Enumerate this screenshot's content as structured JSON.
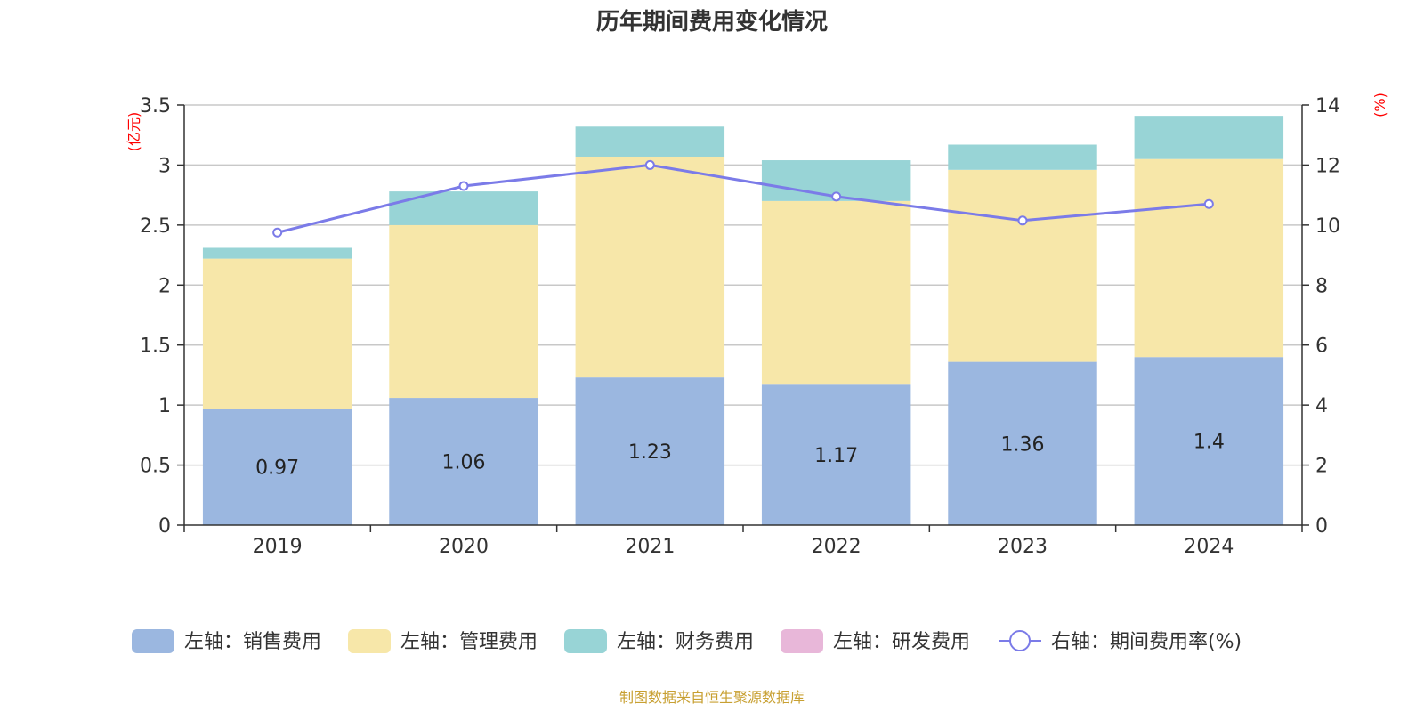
{
  "chart_data": {
    "type": "bar",
    "title": "历年期间费用变化情况",
    "categories": [
      "2019",
      "2020",
      "2021",
      "2022",
      "2023",
      "2024"
    ],
    "left_axis": {
      "unit": "(亿元)",
      "ylim": [
        0,
        3.5
      ],
      "ticks": [
        "0",
        "0.5",
        "1",
        "1.5",
        "2",
        "2.5",
        "3",
        "3.5"
      ]
    },
    "right_axis": {
      "unit": "(%)",
      "ylim": [
        0,
        14
      ],
      "ticks": [
        "0",
        "2",
        "4",
        "6",
        "8",
        "10",
        "12",
        "14"
      ]
    },
    "series": [
      {
        "name": "左轴：销售费用",
        "type": "bar",
        "axis": "left",
        "color": "#9bb7e0",
        "values": [
          0.97,
          1.06,
          1.23,
          1.17,
          1.36,
          1.4
        ],
        "labels": [
          "0.97",
          "1.06",
          "1.23",
          "1.17",
          "1.36",
          "1.4"
        ]
      },
      {
        "name": "左轴：管理费用",
        "type": "bar",
        "axis": "left",
        "color": "#f7e7a9",
        "values": [
          1.25,
          1.44,
          1.84,
          1.53,
          1.6,
          1.65
        ]
      },
      {
        "name": "左轴：财务费用",
        "type": "bar",
        "axis": "left",
        "color": "#98d4d6",
        "values": [
          0.09,
          0.28,
          0.25,
          0.34,
          0.21,
          0.36
        ]
      },
      {
        "name": "左轴：研发费用",
        "type": "bar",
        "axis": "left",
        "color": "#e8b7d9",
        "values": [
          0,
          0,
          0,
          0,
          0,
          0
        ]
      },
      {
        "name": "右轴：期间费用率(%)",
        "type": "line",
        "axis": "right",
        "color": "#7b7be8",
        "values": [
          9.75,
          11.3,
          12.0,
          10.95,
          10.15,
          10.7
        ]
      }
    ],
    "grid": true,
    "legend_position": "bottom"
  },
  "source": "制图数据来自恒生聚源数据库"
}
